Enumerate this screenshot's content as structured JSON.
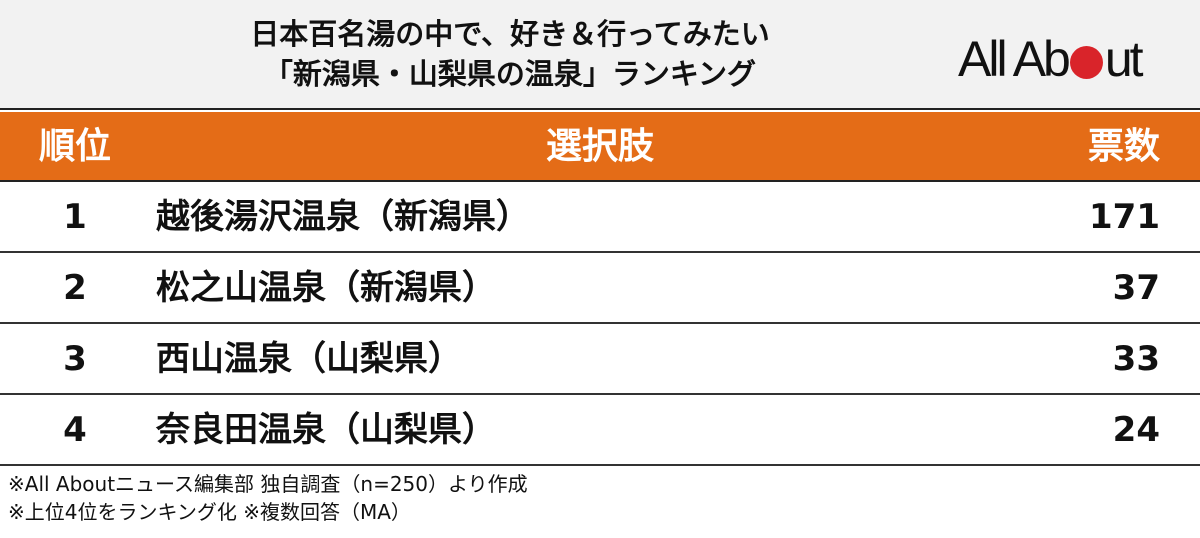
{
  "title_line1": "日本百名湯の中で、好き＆行ってみたい",
  "title_line2": "「新潟県・山梨県の温泉」ランキング",
  "logo": "All About",
  "colors": {
    "header_bg": "#e46c17",
    "logo_dot": "#d9242a"
  },
  "chart_data": {
    "type": "table",
    "columns": [
      "順位",
      "選択肢",
      "票数"
    ],
    "rows": [
      {
        "rank": "1",
        "name": "越後湯沢温泉（新潟県）",
        "votes": "171"
      },
      {
        "rank": "2",
        "name": "松之山温泉（新潟県）",
        "votes": "37"
      },
      {
        "rank": "3",
        "name": "西山温泉（山梨県）",
        "votes": "33"
      },
      {
        "rank": "4",
        "name": "奈良田温泉（山梨県）",
        "votes": "24"
      }
    ]
  },
  "notes": [
    "※All Aboutニュース編集部 独自調査（n=250）より作成",
    "※上位4位をランキング化 ※複数回答（MA）"
  ]
}
